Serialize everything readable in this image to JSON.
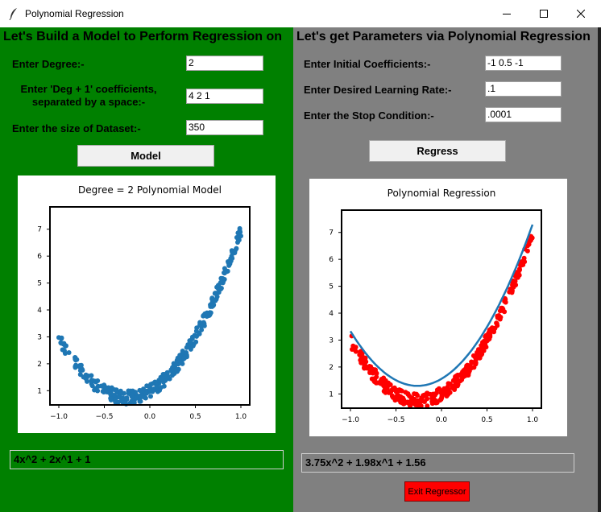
{
  "window": {
    "title": "Polynomial Regression"
  },
  "left": {
    "heading": "Let's Build a Model to Perform Regression on",
    "degree_label": "Enter Degree:-",
    "degree_value": "2",
    "coeff_label_line1": "Enter 'Deg + 1' coefficients,",
    "coeff_label_line2": "separated by a space:-",
    "coeff_value": "4 2 1",
    "size_label": "Enter the size of Dataset:-",
    "size_value": "350",
    "model_button": "Model",
    "result": "4x^2 + 2x^1 + 1"
  },
  "right": {
    "heading": "Let's get Parameters via Polynomial Regression",
    "init_label": "Enter Initial Coefficients:-",
    "init_value": "-1 0.5 -1",
    "lr_label": "Enter Desired Learning Rate:-",
    "lr_value": ".1",
    "stop_label": "Enter the Stop Condition:-",
    "stop_value": ".0001",
    "regress_button": "Regress",
    "result": "3.75x^2 + 1.98x^1 + 1.56",
    "exit_button": "Exit Regressor"
  },
  "colors": {
    "model_points": "#1f77b4",
    "fit_points": "#ff0000",
    "fit_line": "#1f77b4"
  },
  "chart_data": [
    {
      "type": "scatter",
      "title": "Degree = 2 Polynomial Model",
      "generating_coefficients": [
        4,
        2,
        1
      ],
      "n_points": 350,
      "noise_range": [
        -0.25,
        0.25
      ],
      "xlim": [
        -1.0,
        1.0
      ],
      "ylim": [
        0.8,
        7.5
      ],
      "x_ticks": [
        "−1.0",
        "−0.5",
        "0.0",
        "0.5",
        "1.0"
      ],
      "y_ticks": [
        "1",
        "2",
        "3",
        "4",
        "5",
        "6",
        "7"
      ]
    },
    {
      "type": "scatter",
      "title": "Polynomial Regression",
      "generating_coefficients": [
        4,
        2,
        1
      ],
      "fit_coefficients": [
        3.75,
        1.98,
        1.56
      ],
      "n_points": 350,
      "noise_range": [
        -0.25,
        0.25
      ],
      "xlim": [
        -1.0,
        1.0
      ],
      "ylim": [
        0.8,
        7.5
      ],
      "x_ticks": [
        "−1.0",
        "−0.5",
        "0.0",
        "0.5",
        "1.0"
      ],
      "y_ticks": [
        "1",
        "2",
        "3",
        "4",
        "5",
        "6",
        "7"
      ]
    }
  ]
}
